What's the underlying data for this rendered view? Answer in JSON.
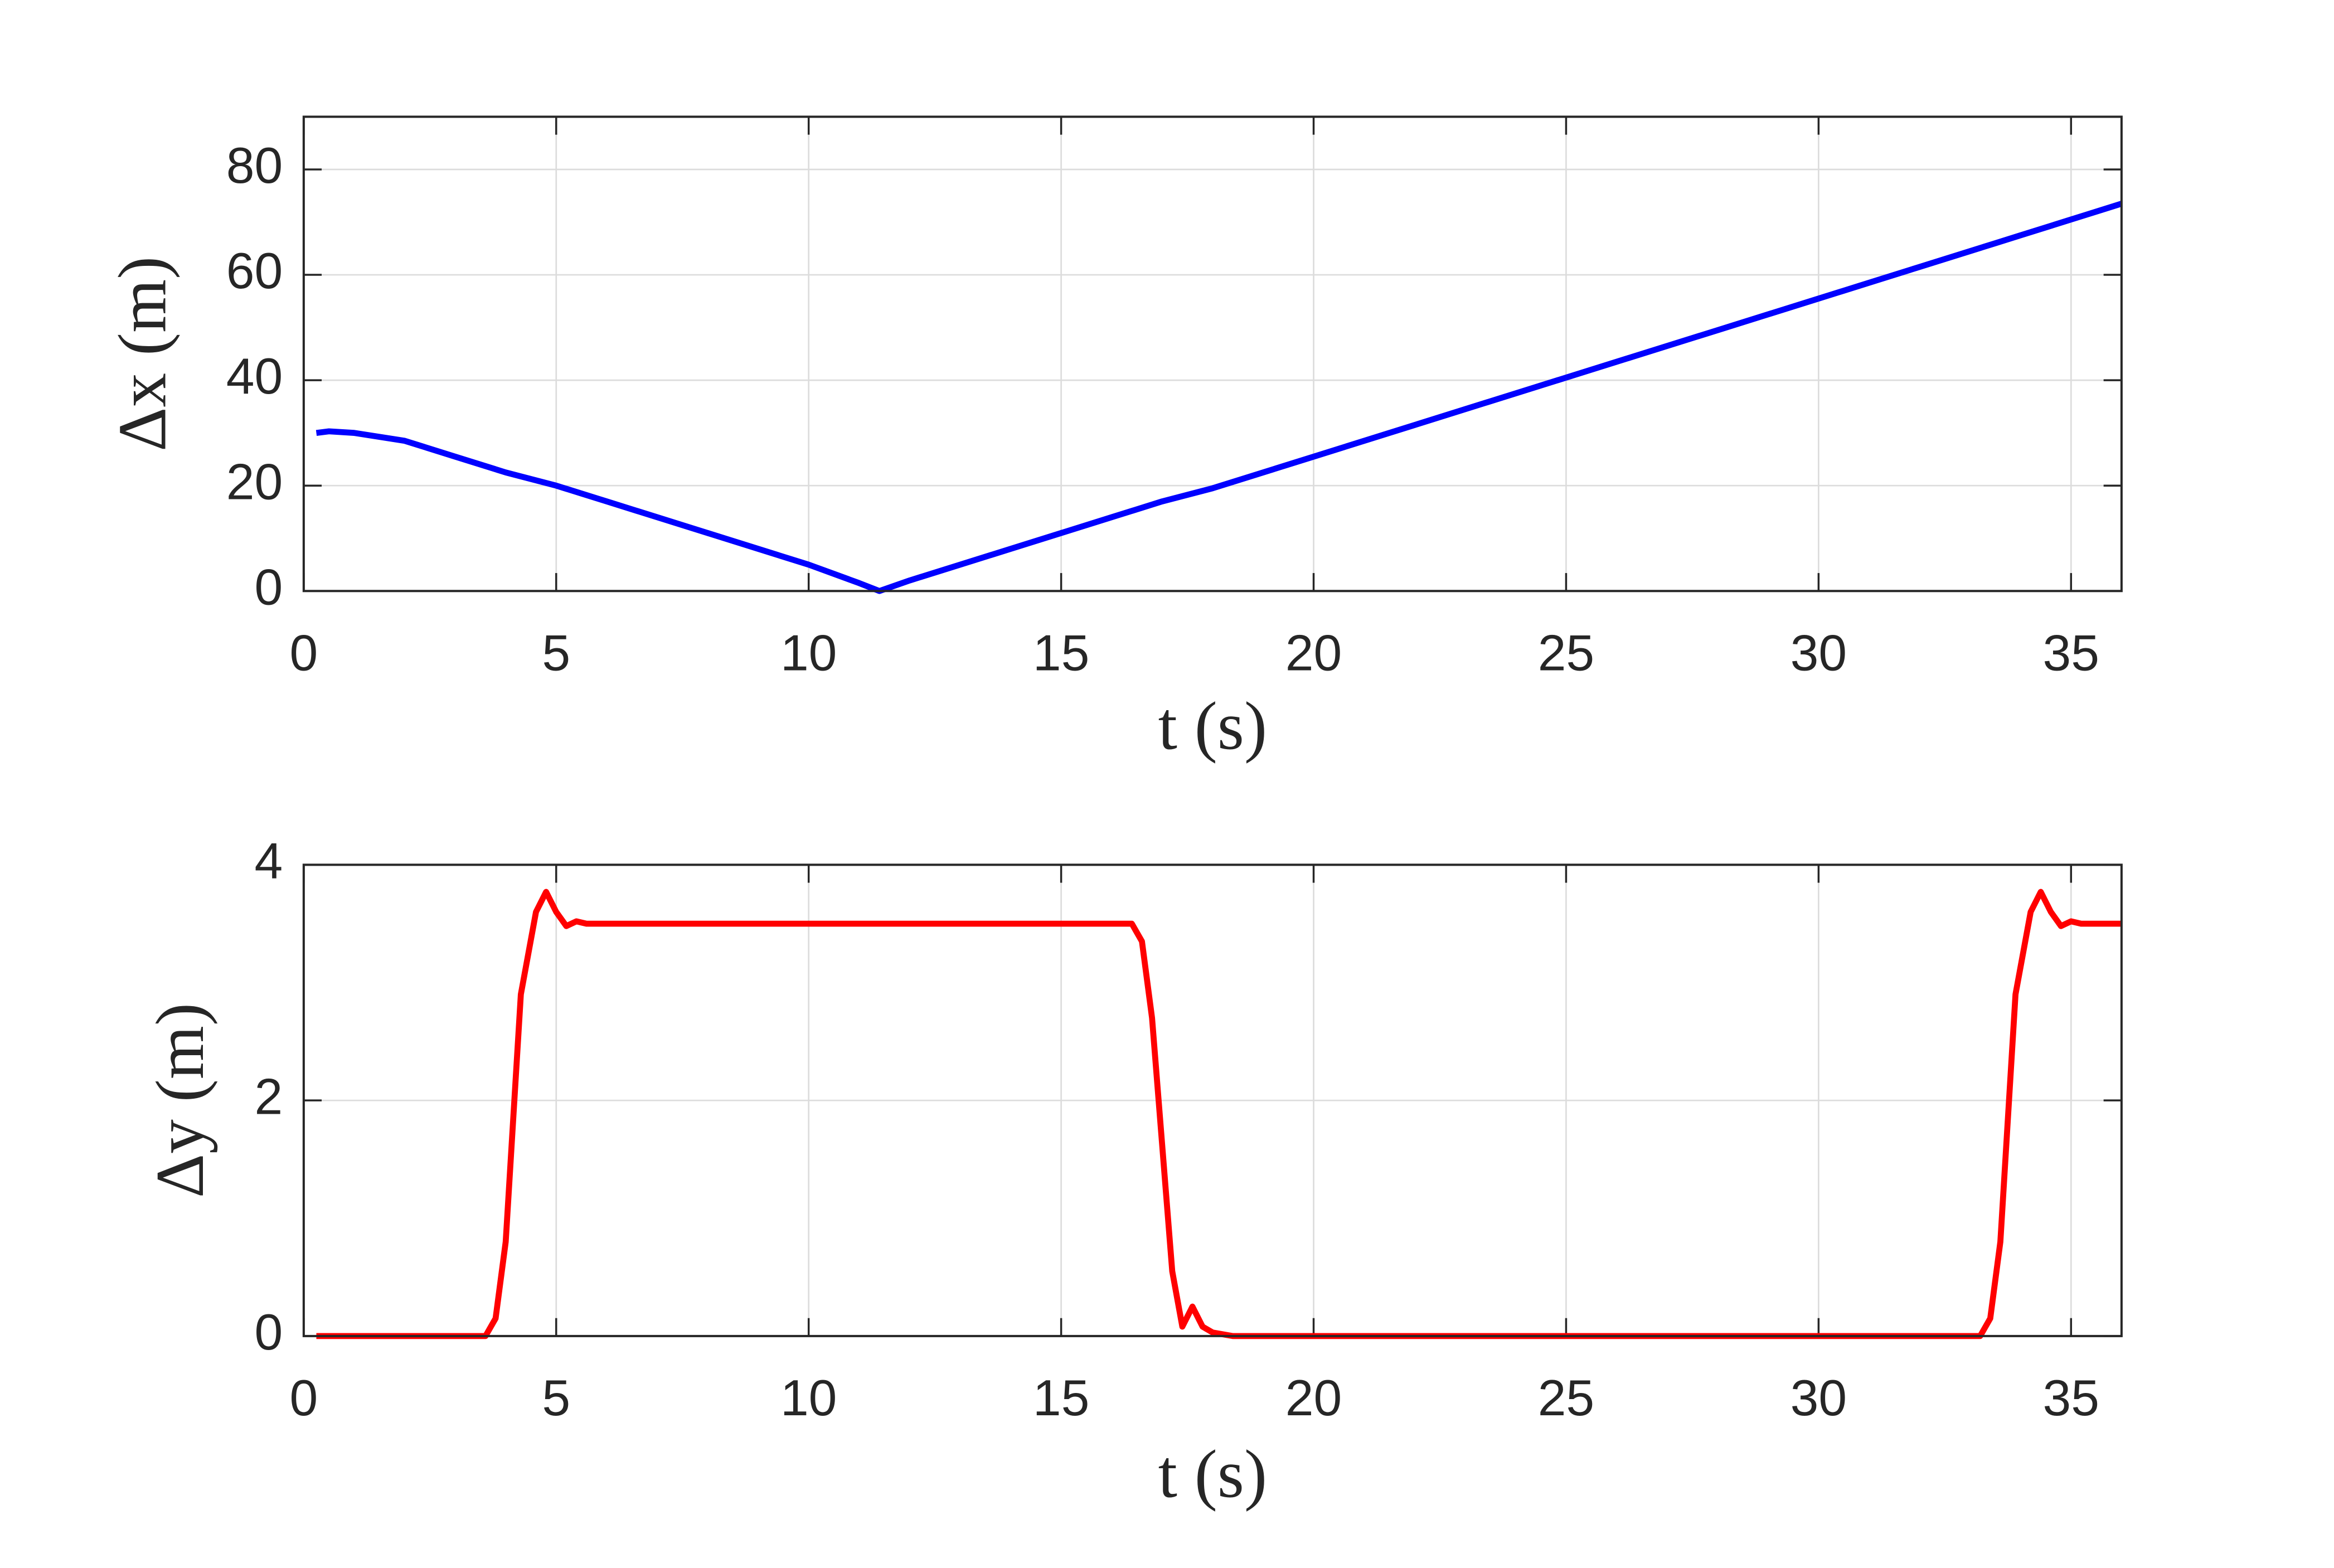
{
  "chart_data": [
    {
      "type": "line",
      "xlabel": "t (s)",
      "ylabel": "Δx (m)",
      "xlim": [
        0,
        36
      ],
      "ylim": [
        0,
        90
      ],
      "xticks": [
        0,
        5,
        10,
        15,
        20,
        25,
        30,
        35
      ],
      "yticks": [
        0,
        20,
        40,
        60,
        80
      ],
      "grid": true,
      "x": [
        0.25,
        0.5,
        1,
        2,
        3,
        4,
        5,
        6,
        7,
        8,
        9,
        10,
        11,
        11.4,
        12,
        13,
        14,
        15,
        16,
        17,
        18,
        20,
        22,
        24,
        26,
        28,
        30,
        32,
        33.5,
        34,
        35,
        36
      ],
      "series": [
        {
          "color": "#0000ff",
          "values": [
            30,
            30.3,
            30,
            28.5,
            25.5,
            22.5,
            20,
            17,
            14,
            11,
            8,
            5,
            1.5,
            0,
            2,
            5,
            8,
            11,
            14,
            17,
            19.5,
            25.5,
            31.5,
            37.5,
            43.5,
            49.5,
            55.5,
            61.5,
            66,
            67.5,
            70.5,
            73.5
          ]
        }
      ]
    },
    {
      "type": "line",
      "xlabel": "t (s)",
      "ylabel": "Δy (m)",
      "xlim": [
        0,
        36
      ],
      "ylim": [
        0,
        4
      ],
      "xticks": [
        0,
        5,
        10,
        15,
        20,
        25,
        30,
        35
      ],
      "yticks": [
        0,
        2,
        4
      ],
      "grid": true,
      "x": [
        0.25,
        3.6,
        3.8,
        4.0,
        4.3,
        4.6,
        4.8,
        5.0,
        5.2,
        5.4,
        5.6,
        16.4,
        16.6,
        16.8,
        17.2,
        17.4,
        17.6,
        17.8,
        18.0,
        18.4,
        33.2,
        33.4,
        33.6,
        33.9,
        34.2,
        34.4,
        34.6,
        34.8,
        35.0,
        35.2,
        36
      ],
      "series": [
        {
          "color": "#ff0000",
          "values": [
            0,
            0,
            0.15,
            0.8,
            2.9,
            3.6,
            3.77,
            3.6,
            3.48,
            3.52,
            3.5,
            3.5,
            3.35,
            2.7,
            0.55,
            0.08,
            0.25,
            0.08,
            0.03,
            0,
            0,
            0.15,
            0.8,
            2.9,
            3.6,
            3.77,
            3.6,
            3.48,
            3.52,
            3.5,
            3.5
          ]
        }
      ]
    }
  ]
}
